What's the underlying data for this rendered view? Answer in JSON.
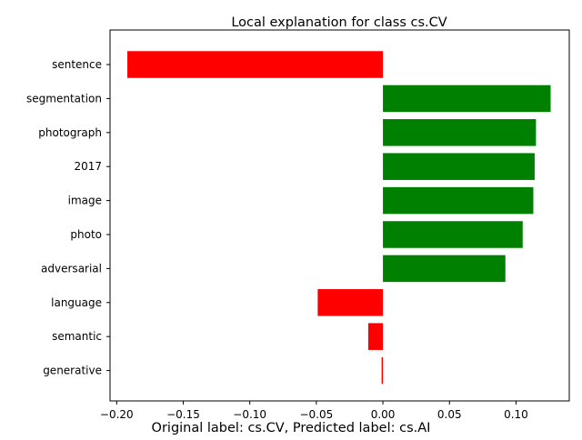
{
  "chart_data": {
    "type": "bar",
    "orientation": "horizontal",
    "title": "Local explanation for class cs.CV",
    "caption": "Original label: cs.CV, Predicted label: cs.AI",
    "categories": [
      "sentence",
      "segmentation",
      "photograph",
      "2017",
      "image",
      "photo",
      "adversarial",
      "language",
      "semantic",
      "generative"
    ],
    "values": [
      -0.192,
      0.126,
      0.115,
      0.114,
      0.113,
      0.105,
      0.092,
      -0.049,
      -0.011,
      -0.001
    ],
    "xlim": [
      -0.205,
      0.14
    ],
    "xticks": [
      -0.2,
      -0.15,
      -0.1,
      -0.05,
      0.0,
      0.05,
      0.1
    ],
    "xtick_labels": [
      "−0.20",
      "−0.15",
      "−0.10",
      "−0.05",
      "0.00",
      "0.05",
      "0.10"
    ],
    "xlabel": "",
    "ylabel": "",
    "grid": false,
    "colors": {
      "positive": "#008000",
      "negative": "#ff0000",
      "axis": "#000000"
    }
  }
}
